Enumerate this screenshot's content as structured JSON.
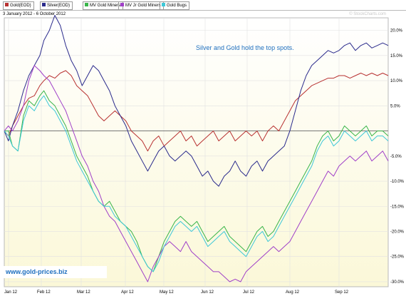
{
  "legend": [
    {
      "label": "Gold(EOD)",
      "color": "#b83232"
    },
    {
      "label": "Silver(EOD)",
      "color": "#2a2a8c"
    },
    {
      "label": "MV Gold Miners",
      "color": "#39b54a"
    },
    {
      "label": "MV Jr Gold Miners",
      "color": "#a040c8"
    },
    {
      "label": "Gold Bugs",
      "color": "#3ec8d8"
    }
  ],
  "header": {
    "date_range": "3 January 2012 - 6 October 2012",
    "credit": "© StockCharts.com"
  },
  "annotation": "Silver and Gold hold the top spots.",
  "site_label": "www.gold-prices.biz",
  "chart_data": {
    "type": "line",
    "title": "",
    "x_axis_labels": [
      "Jan 12",
      "Feb 12",
      "Mar 12",
      "Apr 12",
      "May 12",
      "Jun 12",
      "Jul 12",
      "Aug 12",
      "Sep 12"
    ],
    "y_tick_labels": [
      "20.0%",
      "15.0%",
      "10.0%",
      "5.0%",
      "-5.0%",
      "-10.0%",
      "-15.0%",
      "-20.0%",
      "-25.0%",
      "-30.0%"
    ],
    "y_ticks": [
      20,
      15,
      10,
      5,
      -5,
      -10,
      -15,
      -20,
      -25,
      -30
    ],
    "ylim": [
      -31,
      22.5
    ],
    "zero_line": true,
    "grid": true,
    "x": [
      0,
      3,
      6,
      10,
      14,
      18,
      22,
      26,
      29,
      33,
      37,
      41,
      45,
      49,
      53,
      57,
      61,
      65,
      69,
      73,
      77,
      81,
      85,
      89,
      93,
      97,
      101,
      105,
      109,
      113,
      117,
      121,
      125,
      129,
      133,
      137,
      141,
      145,
      149,
      153,
      157,
      161,
      165,
      169,
      173,
      177,
      181,
      185,
      189,
      193,
      197,
      201,
      205,
      209,
      213,
      217,
      221,
      225,
      229,
      233,
      237,
      241,
      245,
      249,
      253,
      257,
      261,
      265,
      269,
      273,
      277,
      281
    ],
    "series": [
      {
        "name": "Gold(EOD)",
        "color": "#b83232",
        "values": [
          0,
          -1,
          1,
          3,
          5,
          6.5,
          7,
          9,
          10,
          11,
          10.5,
          11.5,
          12,
          11,
          9,
          8,
          7,
          5,
          3,
          2,
          3,
          4,
          3,
          2,
          0,
          -1,
          -2,
          -4,
          -2,
          -1,
          -3,
          -2,
          -1,
          0,
          -2,
          -1,
          -3,
          -2,
          -1,
          0,
          -2,
          -1,
          0,
          -2,
          -1,
          0,
          -1,
          0,
          -2,
          0,
          1,
          0,
          2,
          4,
          6,
          7,
          8,
          9,
          9.5,
          10,
          10.5,
          10.5,
          11,
          11,
          10.5,
          11,
          11.5,
          11,
          11.5,
          11,
          11.5,
          11
        ]
      },
      {
        "name": "Silver(EOD)",
        "color": "#2a2a8c",
        "values": [
          0,
          -2,
          1,
          4,
          8,
          11,
          13,
          15,
          18,
          20,
          23,
          21,
          17,
          14,
          12,
          9,
          11,
          13,
          12,
          10,
          8,
          5,
          3,
          1,
          -2,
          -4,
          -6,
          -8,
          -6,
          -4,
          -3,
          -5,
          -6,
          -5,
          -4,
          -5,
          -7,
          -9,
          -8,
          -10,
          -11,
          -9,
          -8,
          -6,
          -8,
          -9,
          -7,
          -6,
          -8,
          -6,
          -5,
          -4,
          -3,
          0,
          4,
          8,
          11,
          13,
          14,
          15,
          16,
          15.5,
          16,
          17,
          17.5,
          16,
          17,
          17.5,
          16.5,
          17,
          17.5,
          17
        ]
      },
      {
        "name": "MV Gold Miners",
        "color": "#39b54a",
        "values": [
          0,
          0,
          -3,
          -4,
          3,
          6,
          5,
          7,
          8,
          6,
          5,
          3,
          1,
          -2,
          -5,
          -7,
          -9,
          -12,
          -14,
          -15,
          -14,
          -16,
          -18,
          -19,
          -20,
          -22,
          -25,
          -27,
          -28,
          -25,
          -22,
          -20,
          -18,
          -17,
          -18,
          -19,
          -18,
          -20,
          -22,
          -21,
          -20,
          -19,
          -21,
          -22,
          -23,
          -24,
          -22,
          -20,
          -19,
          -21,
          -20,
          -18,
          -16,
          -14,
          -12,
          -10,
          -8,
          -6,
          -3,
          -1,
          0,
          -2,
          -1,
          1,
          0,
          -1,
          0,
          1,
          -1,
          0,
          0,
          -1
        ]
      },
      {
        "name": "MV Jr Gold Miners",
        "color": "#a040c8",
        "values": [
          0,
          1,
          0,
          2,
          5,
          10,
          13,
          12,
          11,
          10,
          8,
          6,
          4,
          1,
          -2,
          -5,
          -7,
          -10,
          -12,
          -15,
          -17,
          -18,
          -20,
          -22,
          -24,
          -26,
          -28,
          -30,
          -27,
          -25,
          -23,
          -22,
          -23,
          -24,
          -22,
          -24,
          -25,
          -26,
          -27,
          -28,
          -28,
          -29,
          -30,
          -29.5,
          -30,
          -28,
          -27,
          -26,
          -25,
          -24,
          -23,
          -24,
          -23,
          -22,
          -20,
          -18,
          -16,
          -14,
          -12,
          -10,
          -8,
          -9,
          -7,
          -6,
          -5,
          -6,
          -5,
          -4,
          -6,
          -5,
          -4,
          -6
        ]
      },
      {
        "name": "Gold Bugs",
        "color": "#3ec8d8",
        "values": [
          0,
          -1,
          -3,
          -4,
          2,
          5,
          4,
          6,
          7,
          5,
          4,
          2,
          0,
          -3,
          -6,
          -8,
          -10,
          -12,
          -14,
          -15,
          -15,
          -17,
          -18,
          -19,
          -21,
          -23,
          -25,
          -27,
          -28,
          -26,
          -23,
          -21,
          -19,
          -18,
          -19,
          -20,
          -19,
          -21,
          -23,
          -22,
          -21,
          -20,
          -22,
          -23,
          -24,
          -25,
          -23,
          -21,
          -20,
          -22,
          -21,
          -19,
          -17,
          -15,
          -13,
          -11,
          -9,
          -7,
          -4,
          -2,
          -1,
          -3,
          -2,
          0,
          -1,
          -2,
          -1,
          0,
          -2,
          -1,
          -1,
          -2
        ]
      }
    ]
  }
}
